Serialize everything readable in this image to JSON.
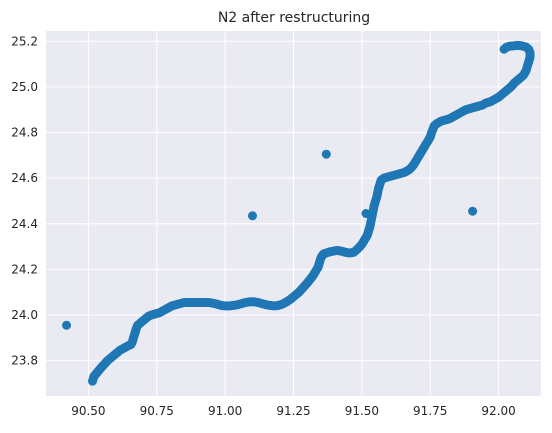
{
  "chart_data": {
    "type": "scatter",
    "title": "N2 after restructuring",
    "xlabel": "",
    "ylabel": "",
    "xlim": [
      90.345,
      92.155
    ],
    "ylim": [
      23.645,
      25.245
    ],
    "xticks": [
      90.5,
      90.75,
      91.0,
      91.25,
      91.5,
      91.75,
      92.0
    ],
    "xtick_labels": [
      "90.50",
      "90.75",
      "91.00",
      "91.25",
      "91.50",
      "91.75",
      "92.00"
    ],
    "yticks": [
      23.8,
      24.0,
      24.2,
      24.4,
      24.6,
      24.8,
      25.0,
      25.2
    ],
    "ytick_labels": [
      "23.8",
      "24.0",
      "24.2",
      "24.4",
      "24.6",
      "24.8",
      "25.0",
      "25.2"
    ],
    "grid": true,
    "background": "#eaeaf2",
    "point_color": "#1f77b4",
    "series": [
      {
        "name": "",
        "x": [
          90.515,
          90.52,
          90.53,
          90.54,
          90.555,
          90.57,
          90.585,
          90.6,
          90.615,
          90.63,
          90.645,
          90.655,
          90.66,
          90.665,
          90.67,
          90.675,
          90.68,
          90.69,
          90.7,
          90.71,
          90.72,
          90.73,
          90.745,
          90.76,
          90.775,
          90.79,
          90.805,
          90.82,
          90.835,
          90.85,
          90.865,
          90.88,
          90.895,
          90.91,
          90.925,
          90.94,
          90.955,
          90.97,
          90.985,
          91.0,
          91.015,
          91.03,
          91.045,
          91.06,
          91.075,
          91.09,
          91.105,
          91.12,
          91.135,
          91.15,
          91.165,
          91.18,
          91.195,
          91.21,
          91.225,
          91.24,
          91.255,
          91.27,
          91.285,
          91.3,
          91.31,
          91.32,
          91.33,
          91.34,
          91.345,
          91.35,
          91.355,
          91.36,
          91.37,
          91.38,
          91.395,
          91.41,
          91.425,
          91.44,
          91.455,
          91.47,
          91.485,
          91.5,
          91.51,
          91.52,
          91.525,
          91.53,
          91.535,
          91.54,
          91.545,
          91.55,
          91.555,
          91.56,
          91.565,
          91.57,
          91.58,
          91.595,
          91.61,
          91.625,
          91.64,
          91.655,
          91.67,
          91.68,
          91.69,
          91.7,
          91.71,
          91.72,
          91.73,
          91.74,
          91.75,
          91.755,
          91.76,
          91.765,
          91.775,
          91.79,
          91.805,
          91.82,
          91.835,
          91.85,
          91.865,
          91.88,
          91.895,
          91.91,
          91.925,
          91.94,
          91.955,
          91.97,
          91.985,
          92.0,
          92.015,
          92.03,
          92.045,
          92.06,
          92.075,
          92.09,
          92.1,
          92.105,
          92.11,
          92.115,
          92.115,
          92.11,
          92.1,
          92.085,
          92.07,
          92.055,
          92.04,
          92.03,
          92.025,
          92.02
        ],
        "y": [
          23.71,
          23.73,
          23.745,
          23.76,
          23.78,
          23.8,
          23.815,
          23.83,
          23.845,
          23.855,
          23.865,
          23.87,
          23.88,
          23.9,
          23.92,
          23.94,
          23.955,
          23.965,
          23.975,
          23.985,
          23.995,
          24.0,
          24.005,
          24.01,
          24.02,
          24.03,
          24.04,
          24.045,
          24.05,
          24.055,
          24.055,
          24.055,
          24.055,
          24.055,
          24.055,
          24.055,
          24.052,
          24.048,
          24.042,
          24.04,
          24.04,
          24.042,
          24.045,
          24.05,
          24.055,
          24.058,
          24.058,
          24.055,
          24.05,
          24.045,
          24.042,
          24.04,
          24.042,
          24.048,
          24.058,
          24.07,
          24.085,
          24.1,
          24.12,
          24.14,
          24.155,
          24.17,
          24.19,
          24.21,
          24.23,
          24.25,
          24.26,
          24.268,
          24.272,
          24.276,
          24.28,
          24.283,
          24.28,
          24.275,
          24.272,
          24.275,
          24.29,
          24.31,
          24.33,
          24.35,
          24.37,
          24.39,
          24.42,
          24.45,
          24.48,
          24.5,
          24.52,
          24.55,
          24.57,
          24.59,
          24.6,
          24.605,
          24.61,
          24.615,
          24.62,
          24.625,
          24.635,
          24.645,
          24.66,
          24.68,
          24.7,
          24.72,
          24.74,
          24.76,
          24.78,
          24.8,
          24.815,
          24.83,
          24.84,
          24.85,
          24.855,
          24.86,
          24.87,
          24.88,
          24.89,
          24.9,
          24.905,
          24.91,
          24.915,
          24.92,
          24.93,
          24.935,
          24.945,
          24.955,
          24.97,
          24.985,
          25.0,
          25.02,
          25.035,
          25.05,
          25.07,
          25.09,
          25.11,
          25.13,
          25.15,
          25.165,
          25.175,
          25.18,
          25.182,
          25.18,
          25.178,
          25.175,
          25.17,
          25.165
        ]
      },
      {
        "name": "",
        "x": [
          90.42,
          91.1,
          91.37,
          91.515,
          91.905
        ],
        "y": [
          23.955,
          24.435,
          24.705,
          24.445,
          24.455
        ]
      }
    ]
  }
}
